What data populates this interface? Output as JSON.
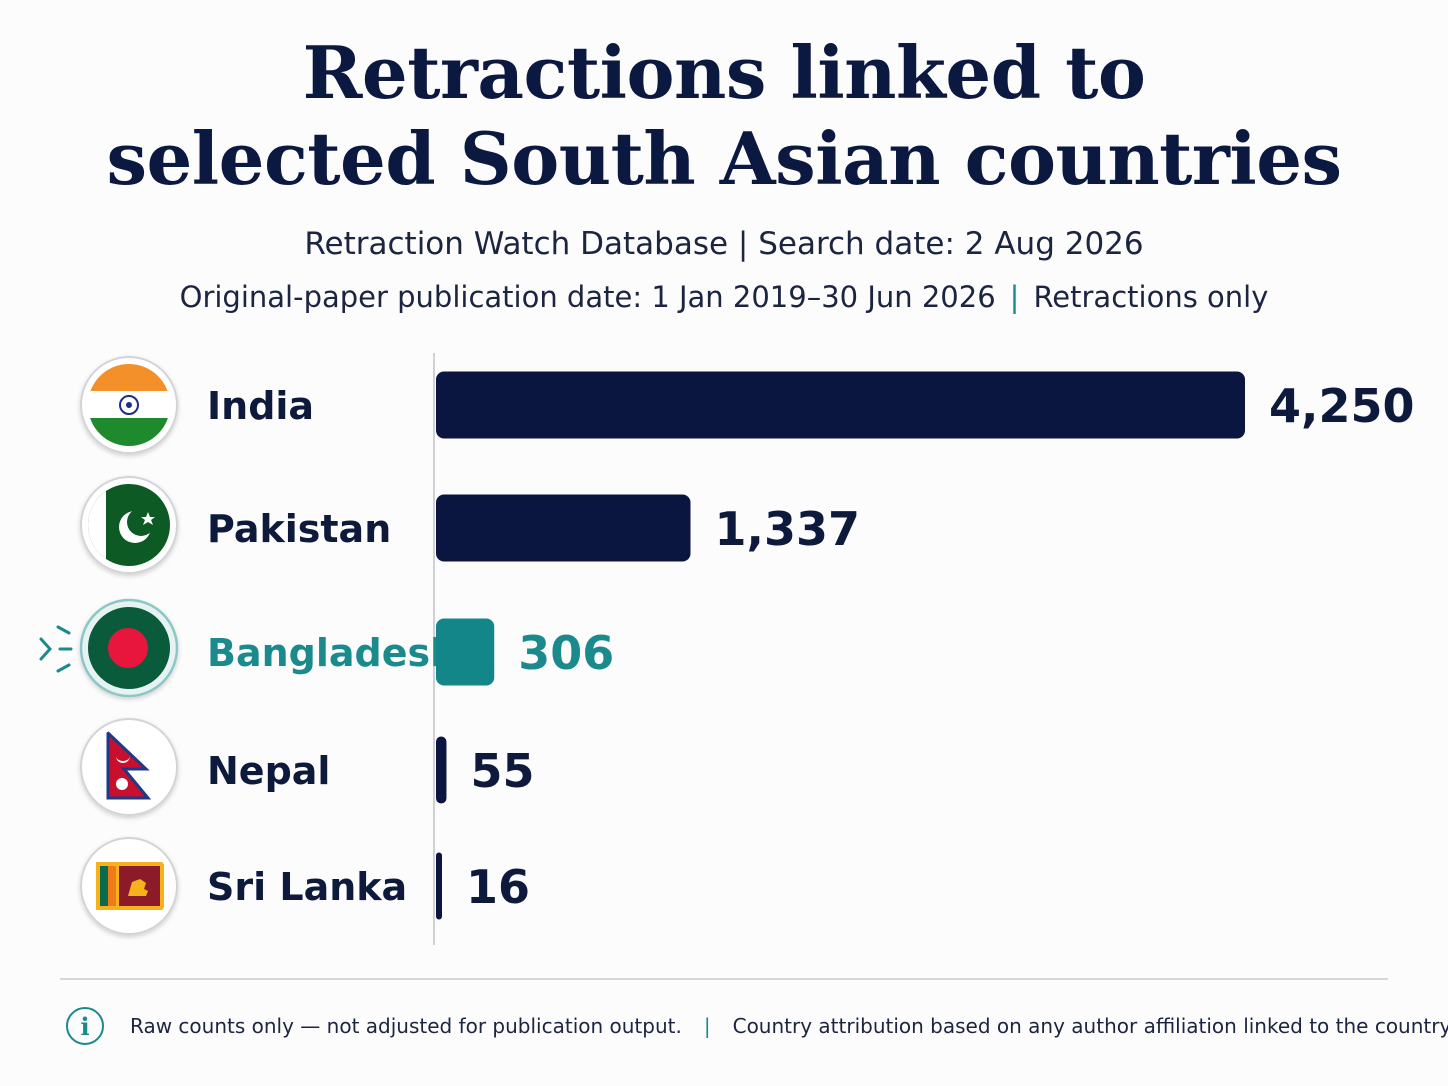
{
  "subtitle": {
    "source_line": "Retraction Watch Database | Search date: 2 Aug 2026",
    "range_text": "Original-paper publication date: 1 Jan 2019–30 Jun 2026",
    "separator": "|",
    "scope_text": "Retractions only"
  },
  "footer": {
    "note_left": "Raw counts only — not adjusted for publication output.",
    "separator": "|",
    "note_right": "Country attribution based on any author affiliation linked to the country.",
    "info_glyph": "i"
  },
  "colors": {
    "bar_default": "#0b1640",
    "bar_highlight": "#13868a",
    "text_default": "#0d1a3c",
    "text_highlight": "#1a8a8c"
  },
  "chart_data": {
    "type": "bar",
    "orientation": "horizontal",
    "title": "Retractions linked to selected South Asian countries",
    "title_lines": [
      "Retractions linked to",
      "selected South Asian countries"
    ],
    "categories": [
      "India",
      "Pakistan",
      "Bangladesh",
      "Nepal",
      "Sri Lanka"
    ],
    "values": [
      4250,
      1337,
      306,
      55,
      16
    ],
    "value_labels": [
      "4,250",
      "1,337",
      "306",
      "55",
      "16"
    ],
    "highlight": "Bangladesh",
    "icons": [
      "india-flag-icon",
      "pakistan-flag-icon",
      "bangladesh-flag-icon",
      "nepal-flag-icon",
      "sri-lanka-flag-icon"
    ],
    "xlim": [
      0,
      4250
    ],
    "grid": false,
    "legend": "none"
  }
}
